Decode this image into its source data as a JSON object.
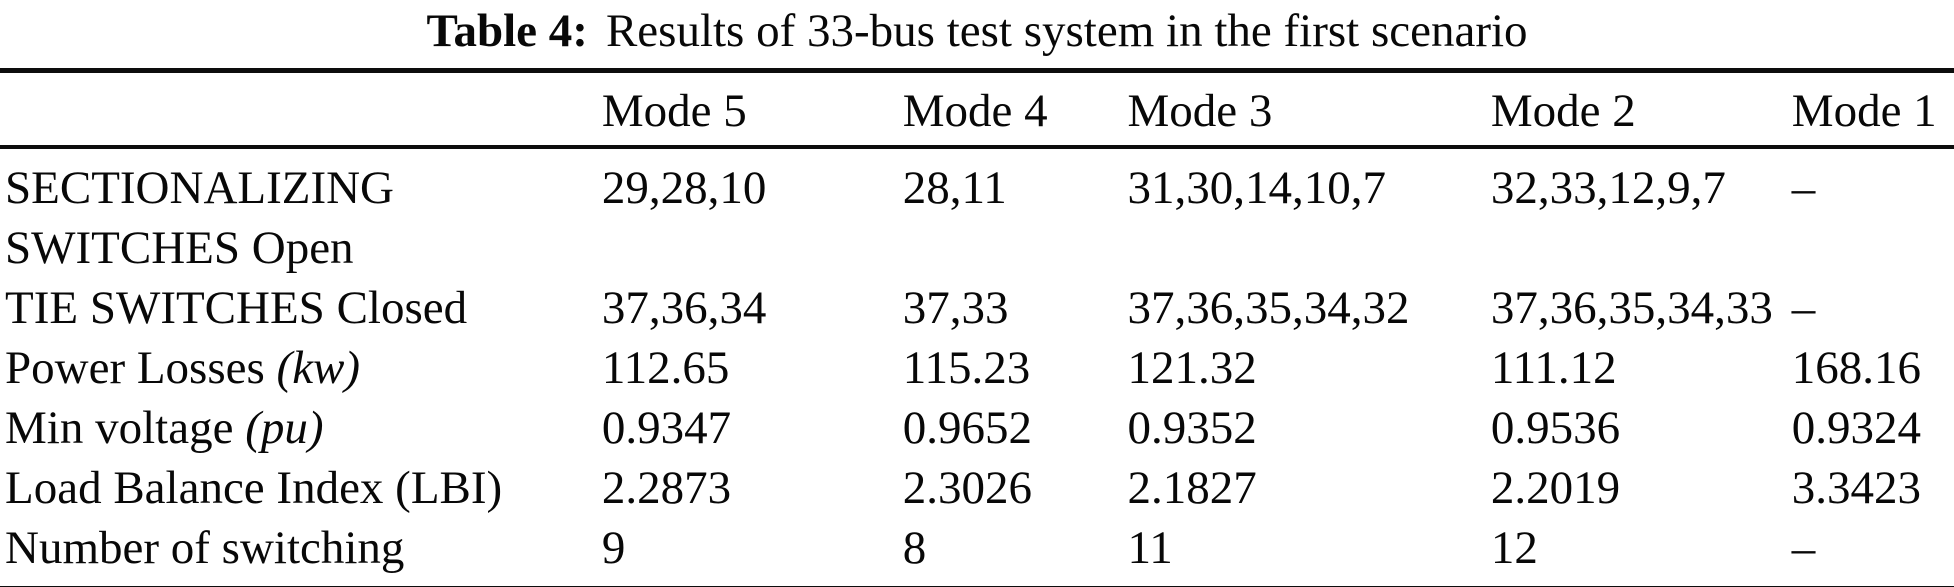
{
  "caption": {
    "label": "Table 4:",
    "text": "Results of 33-bus test system in the first scenario"
  },
  "table": {
    "headers": [
      "Mode 5",
      "Mode 4",
      "Mode 3",
      "Mode 2",
      "Mode 1"
    ],
    "rows": [
      {
        "label_prefix": "SECTIONALIZING SWITCHES Open",
        "label_italic": "",
        "values": [
          "29,28,10",
          "28,11",
          "31,30,14,10,7",
          "32,33,12,9,7",
          "–"
        ]
      },
      {
        "label_prefix": "TIE SWITCHES Closed",
        "label_italic": "",
        "values": [
          "37,36,34",
          "37,33",
          "37,36,35,34,32",
          "37,36,35,34,33",
          "–"
        ]
      },
      {
        "label_prefix": "Power Losses ",
        "label_italic": "(kw)",
        "values": [
          "112.65",
          "115.23",
          "121.32",
          "111.12",
          "168.16"
        ]
      },
      {
        "label_prefix": "Min voltage ",
        "label_italic": "(pu)",
        "values": [
          "0.9347",
          "0.9652",
          "0.9352",
          "0.9536",
          "0.9324"
        ]
      },
      {
        "label_prefix": "Load Balance Index (LBI)",
        "label_italic": "",
        "values": [
          "2.2873",
          "2.3026",
          "2.1827",
          "2.2019",
          "3.3423"
        ]
      },
      {
        "label_prefix": "Number of switching",
        "label_italic": "",
        "values": [
          "9",
          "8",
          "11",
          "12",
          "–"
        ]
      }
    ]
  }
}
